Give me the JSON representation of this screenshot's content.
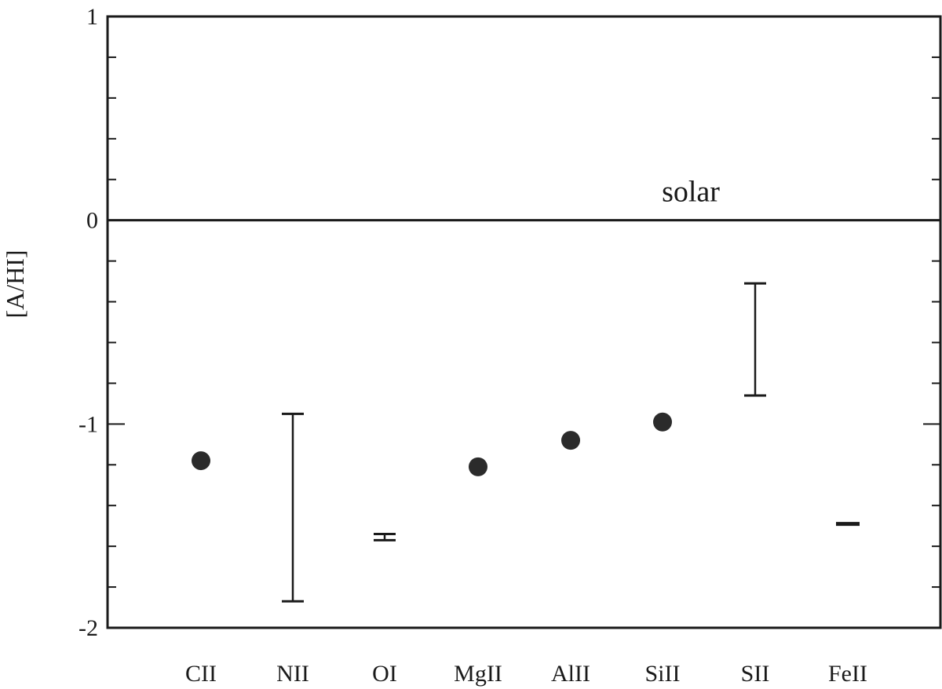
{
  "chart_data": {
    "type": "scatter",
    "title": "",
    "xlabel": "",
    "ylabel": "[A/HI]",
    "ylim": [
      -2,
      1
    ],
    "y_ticks": [
      {
        "value": 1,
        "label": "1"
      },
      {
        "value": 0,
        "label": "0"
      },
      {
        "value": -1,
        "label": "-1"
      },
      {
        "value": -2,
        "label": "-2"
      }
    ],
    "y_minor_step": 0.2,
    "grid": false,
    "legend": "none",
    "categories": [
      "CII",
      "NII",
      "OI",
      "MgII",
      "AlII",
      "SiII",
      "SII",
      "FeII"
    ],
    "points": [
      {
        "category": "CII",
        "y": -1.18,
        "marker": "dot"
      },
      {
        "category": "MgII",
        "y": -1.21,
        "marker": "dot"
      },
      {
        "category": "AlII",
        "y": -1.08,
        "marker": "dot"
      },
      {
        "category": "SiII",
        "y": -0.99,
        "marker": "dot"
      }
    ],
    "ranges": [
      {
        "category": "NII",
        "low": -1.87,
        "high": -0.95
      },
      {
        "category": "OI",
        "low": -1.57,
        "high": -1.54
      },
      {
        "category": "SII",
        "low": -0.86,
        "high": -0.31
      }
    ],
    "limits": [
      {
        "category": "FeII",
        "y": -1.49
      }
    ],
    "reference_line": {
      "y": 0,
      "label": "solar"
    },
    "colors": {
      "ink": "#1a1a1a",
      "marker": "#2b2b2b",
      "background": "#ffffff"
    }
  }
}
